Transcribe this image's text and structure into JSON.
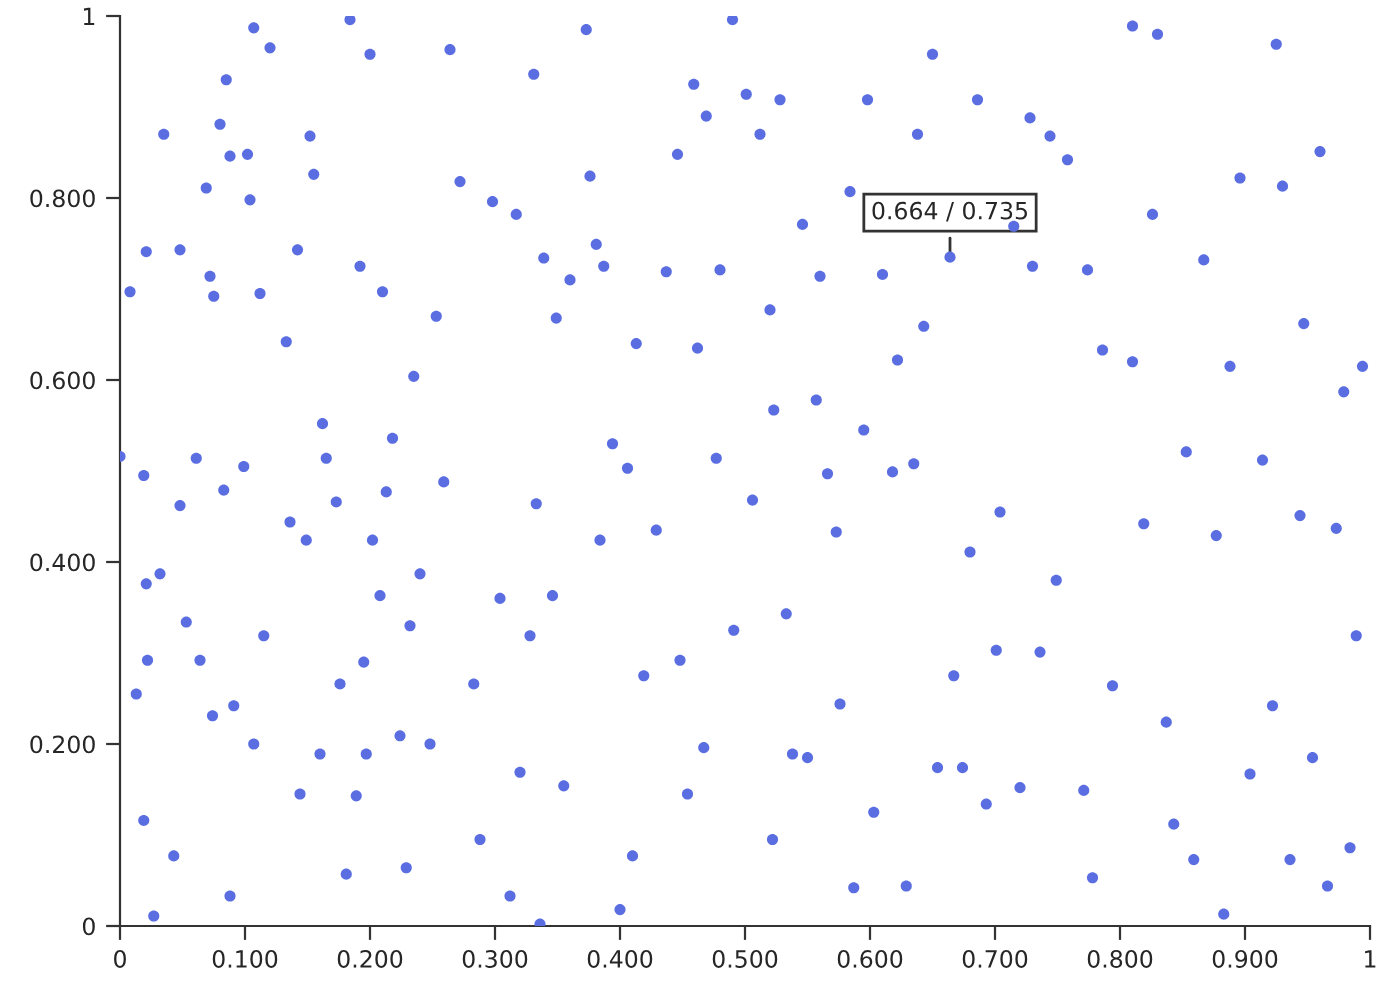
{
  "chart_data": {
    "type": "scatter",
    "x": [
      0,
      0.008,
      0.013,
      0.019,
      0.021,
      0.019,
      0.021,
      0.022,
      0.027,
      0.032,
      0.035,
      0.043,
      0.048,
      0.048,
      0.053,
      0.061,
      0.064,
      0.069,
      0.072,
      0.075,
      0.074,
      0.08,
      0.085,
      0.083,
      0.088,
      0.088,
      0.091,
      0.099,
      0.102,
      0.104,
      0.107,
      0.107,
      0.112,
      0.115,
      0.12,
      0.133,
      0.136,
      0.142,
      0.144,
      0.149,
      0.152,
      0.155,
      0.16,
      0.162,
      0.165,
      0.173,
      0.176,
      0.181,
      0.184,
      0.189,
      0.192,
      0.195,
      0.197,
      0.2,
      0.202,
      0.208,
      0.21,
      0.213,
      0.218,
      0.224,
      0.229,
      0.232,
      0.235,
      0.24,
      0.248,
      0.253,
      0.259,
      0.264,
      0.272,
      0.283,
      0.288,
      0.298,
      0.304,
      0.312,
      0.317,
      0.32,
      0.328,
      0.331,
      0.333,
      0.336,
      0.339,
      0.346,
      0.349,
      0.355,
      0.36,
      0.373,
      0.376,
      0.381,
      0.384,
      0.387,
      0.394,
      0.4,
      0.406,
      0.41,
      0.413,
      0.419,
      0.429,
      0.437,
      0.448,
      0.446,
      0.454,
      0.459,
      0.462,
      0.469,
      0.467,
      0.477,
      0.48,
      0.49,
      0.491,
      0.501,
      0.506,
      0.512,
      0.52,
      0.523,
      0.522,
      0.528,
      0.533,
      0.538,
      0.546,
      0.55,
      0.557,
      0.56,
      0.566,
      0.573,
      0.576,
      0.584,
      0.587,
      0.595,
      0.598,
      0.603,
      0.61,
      0.618,
      0.622,
      0.629,
      0.635,
      0.638,
      0.643,
      0.65,
      0.654,
      0.664,
      0.667,
      0.674,
      0.68,
      0.686,
      0.693,
      0.701,
      0.704,
      0.715,
      0.72,
      0.728,
      0.73,
      0.736,
      0.744,
      0.749,
      0.758,
      0.771,
      0.774,
      0.778,
      0.786,
      0.794,
      0.81,
      0.81,
      0.819,
      0.826,
      0.83,
      0.837,
      0.843,
      0.853,
      0.859,
      0.867,
      0.877,
      0.883,
      0.888,
      0.896,
      0.904,
      0.914,
      0.922,
      0.925,
      0.93,
      0.936,
      0.944,
      0.947,
      0.954,
      0.96,
      0.966,
      0.973,
      0.979,
      0.984,
      0.989,
      0.994
    ],
    "values": [
      0.516,
      0.697,
      0.255,
      0.495,
      0.741,
      0.116,
      0.376,
      0.292,
      0.011,
      0.387,
      0.87,
      0.077,
      0.743,
      0.462,
      0.334,
      0.514,
      0.292,
      0.811,
      0.714,
      0.692,
      0.231,
      0.881,
      0.93,
      0.479,
      0.846,
      0.033,
      0.242,
      0.505,
      0.848,
      0.798,
      0.2,
      0.987,
      0.695,
      0.319,
      0.965,
      0.642,
      0.444,
      0.743,
      0.145,
      0.424,
      0.868,
      0.826,
      0.189,
      0.552,
      0.514,
      0.466,
      0.266,
      0.057,
      0.996,
      0.143,
      0.725,
      0.29,
      0.189,
      0.958,
      0.424,
      0.363,
      0.697,
      0.477,
      0.536,
      0.209,
      0.064,
      0.33,
      0.604,
      0.387,
      0.2,
      0.67,
      0.488,
      0.963,
      0.818,
      0.266,
      0.095,
      0.796,
      0.36,
      0.033,
      0.782,
      0.169,
      0.319,
      0.936,
      0.464,
      0.002,
      0.734,
      0.363,
      0.668,
      0.154,
      0.71,
      0.985,
      0.824,
      0.749,
      0.424,
      0.725,
      0.53,
      0.018,
      0.503,
      0.077,
      0.64,
      0.275,
      0.435,
      0.719,
      0.292,
      0.848,
      0.145,
      0.925,
      0.635,
      0.89,
      0.196,
      0.514,
      0.721,
      0.996,
      0.325,
      0.914,
      0.468,
      0.87,
      0.677,
      0.567,
      0.095,
      0.908,
      0.343,
      0.189,
      0.771,
      0.185,
      0.578,
      0.714,
      0.497,
      0.433,
      0.244,
      0.807,
      0.042,
      0.545,
      0.908,
      0.125,
      0.716,
      0.499,
      0.622,
      0.044,
      0.508,
      0.87,
      0.659,
      0.958,
      0.174,
      0.735,
      0.275,
      0.174,
      0.411,
      0.908,
      0.134,
      0.303,
      0.455,
      0.769,
      0.152,
      0.888,
      0.725,
      0.301,
      0.868,
      0.38,
      0.842,
      0.149,
      0.721,
      0.053,
      0.633,
      0.264,
      0.62,
      0.989,
      0.442,
      0.782,
      0.98,
      0.224,
      0.112,
      0.521,
      0.073,
      0.732,
      0.429,
      0.013,
      0.615,
      0.822,
      0.167,
      0.512,
      0.242,
      0.969,
      0.813,
      0.073,
      0.451,
      0.662,
      0.185,
      0.851,
      0.044,
      0.437,
      0.587,
      0.086,
      0.319,
      0.615
    ],
    "color": "#5b6ee1",
    "marker": "circle",
    "xlim": [
      0,
      1
    ],
    "ylim": [
      0,
      1
    ],
    "xticks": [
      0,
      {
        "value": 0.1,
        "label": "0.100"
      },
      {
        "value": 0.2,
        "label": "0.200"
      },
      {
        "value": 0.3,
        "label": "0.300"
      },
      {
        "value": 0.4,
        "label": "0.400"
      },
      {
        "value": 0.5,
        "label": "0.500"
      },
      {
        "value": 0.6,
        "label": "0.600"
      },
      {
        "value": 0.7,
        "label": "0.700"
      },
      {
        "value": 0.8,
        "label": "0.800"
      },
      {
        "value": 0.9,
        "label": "0.900"
      },
      1
    ],
    "yticks": [
      0,
      {
        "value": 0.2,
        "label": "0.200"
      },
      {
        "value": 0.4,
        "label": "0.400"
      },
      {
        "value": 0.6,
        "label": "0.600"
      },
      {
        "value": 0.8,
        "label": "0.800"
      },
      1
    ],
    "grid": false,
    "annotations": [
      {
        "text": "0.664 / 0.735",
        "x": 0.664,
        "y": 0.735
      }
    ]
  }
}
